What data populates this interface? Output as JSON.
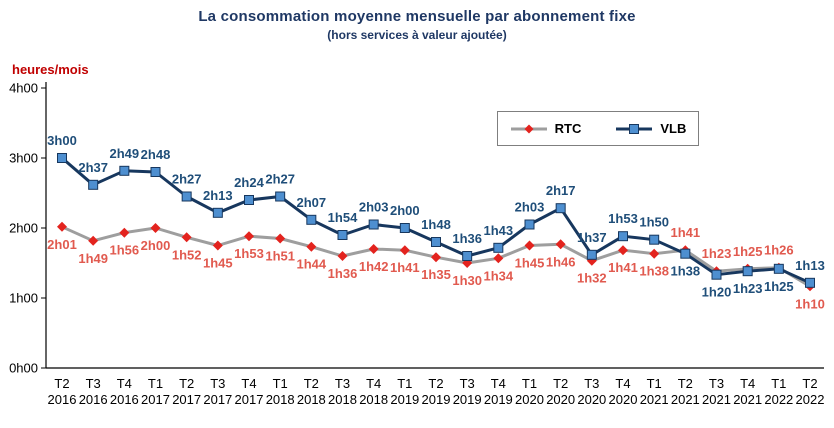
{
  "page": {
    "title": "La consommation moyenne mensuelle par abonnement fixe",
    "subtitle": "(hors services à valeur ajoutée)",
    "y_axis_unit": "heures/mois"
  },
  "legend": {
    "rtc_label": "RTC",
    "vlb_label": "VLB"
  },
  "colors": {
    "title": "#1F3864",
    "unit_label": "#C00000",
    "axis": "#000000",
    "tick_text": "#000000",
    "rtc_line": "#9E9E9E",
    "rtc_marker": "#E3231E",
    "rtc_label": "#E15A4F",
    "vlb_line": "#17375E",
    "vlb_marker_fill": "#4E8FD0",
    "vlb_label": "#1F4E79"
  },
  "chart_data": {
    "type": "line",
    "title": "La consommation moyenne mensuelle par abonnement fixe (hors services à valeur ajoutée)",
    "ylabel": "heures/mois",
    "xlabel": "",
    "y_ticks": [
      "0h00",
      "1h00",
      "2h00",
      "3h00",
      "4h00"
    ],
    "ylim_hours": [
      0,
      4
    ],
    "grid": false,
    "legend_position": "top-right-inset",
    "x_quarters": [
      "T2",
      "T3",
      "T4",
      "T1",
      "T2",
      "T3",
      "T4",
      "T1",
      "T2",
      "T3",
      "T4",
      "T1",
      "T2",
      "T3",
      "T4",
      "T1",
      "T2",
      "T3",
      "T4",
      "T1",
      "T2",
      "T3",
      "T4",
      "T1",
      "T2"
    ],
    "x_years": [
      "2016",
      "2016",
      "2016",
      "2017",
      "2017",
      "2017",
      "2017",
      "2018",
      "2018",
      "2018",
      "2018",
      "2019",
      "2019",
      "2019",
      "2019",
      "2020",
      "2020",
      "2020",
      "2020",
      "2021",
      "2021",
      "2021",
      "2021",
      "2022",
      "2022"
    ],
    "series": [
      {
        "name": "RTC",
        "marker": "diamond",
        "labels": [
          "2h01",
          "1h49",
          "1h56",
          "2h00",
          "1h52",
          "1h45",
          "1h53",
          "1h51",
          "1h44",
          "1h36",
          "1h42",
          "1h41",
          "1h35",
          "1h30",
          "1h34",
          "1h45",
          "1h46",
          "1h32",
          "1h41",
          "1h38",
          "1h41",
          "1h23",
          "1h25",
          "1h26",
          "1h10"
        ],
        "values_hours": [
          2.017,
          1.817,
          1.933,
          2.0,
          1.867,
          1.75,
          1.883,
          1.85,
          1.733,
          1.6,
          1.7,
          1.683,
          1.583,
          1.5,
          1.567,
          1.75,
          1.767,
          1.533,
          1.683,
          1.633,
          1.683,
          1.383,
          1.417,
          1.433,
          1.167
        ],
        "label_pos": [
          "below",
          "below",
          "below",
          "below",
          "below",
          "below",
          "below",
          "below",
          "below",
          "below",
          "below",
          "below",
          "below",
          "below",
          "below",
          "below",
          "below",
          "below",
          "below",
          "below",
          "above",
          "above",
          "above",
          "above",
          "below"
        ]
      },
      {
        "name": "VLB",
        "marker": "square",
        "labels": [
          "3h00",
          "2h37",
          "2h49",
          "2h48",
          "2h27",
          "2h13",
          "2h24",
          "2h27",
          "2h07",
          "1h54",
          "2h03",
          "2h00",
          "1h48",
          "1h36",
          "1h43",
          "2h03",
          "2h17",
          "1h37",
          "1h53",
          "1h50",
          "1h38",
          "1h20",
          "1h23",
          "1h25",
          "1h13"
        ],
        "values_hours": [
          3.0,
          2.617,
          2.817,
          2.8,
          2.45,
          2.217,
          2.4,
          2.45,
          2.117,
          1.9,
          2.05,
          2.0,
          1.8,
          1.6,
          1.717,
          2.05,
          2.283,
          1.617,
          1.883,
          1.833,
          1.633,
          1.333,
          1.383,
          1.417,
          1.217
        ],
        "label_pos": [
          "above",
          "above",
          "above",
          "above",
          "above",
          "above",
          "above",
          "above",
          "above",
          "above",
          "above",
          "above",
          "above",
          "above",
          "above",
          "above",
          "above",
          "above",
          "above",
          "above",
          "below",
          "below",
          "below",
          "below",
          "above"
        ]
      }
    ]
  }
}
